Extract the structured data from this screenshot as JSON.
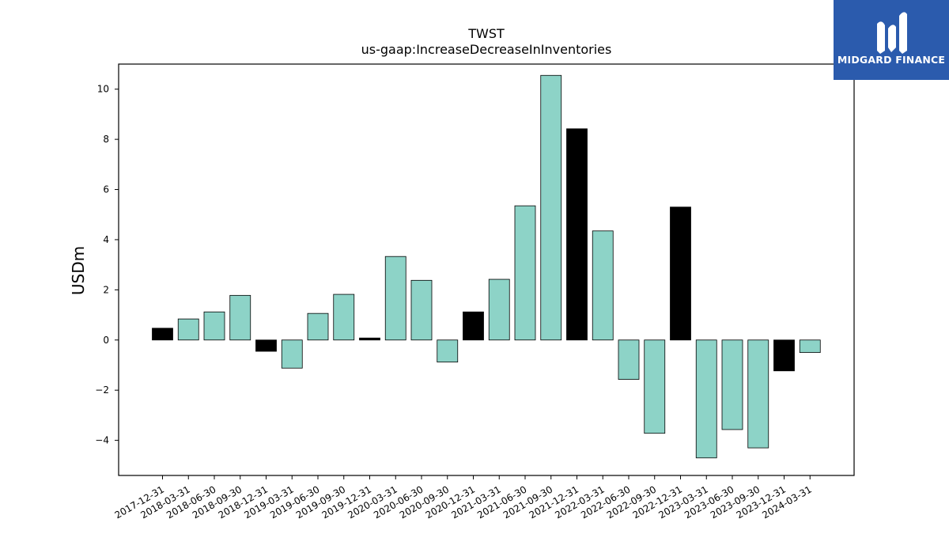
{
  "brand": {
    "name": "MIDGARD FINANCE",
    "background_color": "#2b5bad",
    "icon": "midgard-logo-mark"
  },
  "chart_data": {
    "type": "bar",
    "title": "TWST",
    "subtitle": "us-gaap:IncreaseDecreaseInInventories",
    "xlabel": "",
    "ylabel": "USDm",
    "ylim": [
      -5.4,
      11.0
    ],
    "yticks": [
      -4,
      -2,
      0,
      2,
      4,
      6,
      8,
      10
    ],
    "ytick_labels": [
      "−4",
      "−2",
      "0",
      "2",
      "4",
      "6",
      "8",
      "10"
    ],
    "grid": false,
    "legend": "none",
    "colors": {
      "q4": "#000000",
      "other": "#8dd3c7",
      "edge": "#000000"
    },
    "categories": [
      "2017-12-31",
      "2018-03-31",
      "2018-06-30",
      "2018-09-30",
      "2018-12-31",
      "2019-03-31",
      "2019-06-30",
      "2019-09-30",
      "2019-12-31",
      "2020-03-31",
      "2020-06-30",
      "2020-09-30",
      "2020-12-31",
      "2021-03-31",
      "2021-06-30",
      "2021-09-30",
      "2021-12-31",
      "2022-03-31",
      "2022-06-30",
      "2022-09-30",
      "2022-12-31",
      "2023-03-31",
      "2023-06-30",
      "2023-09-30",
      "2023-12-31",
      "2024-03-31"
    ],
    "values": [
      0.47,
      0.84,
      1.12,
      1.78,
      -0.45,
      -1.12,
      1.06,
      1.82,
      0.08,
      3.33,
      2.38,
      -0.88,
      1.12,
      2.42,
      5.35,
      10.55,
      8.42,
      4.35,
      -1.57,
      -3.72,
      5.3,
      -4.7,
      -3.57,
      -4.3,
      -1.23,
      -0.5
    ]
  }
}
